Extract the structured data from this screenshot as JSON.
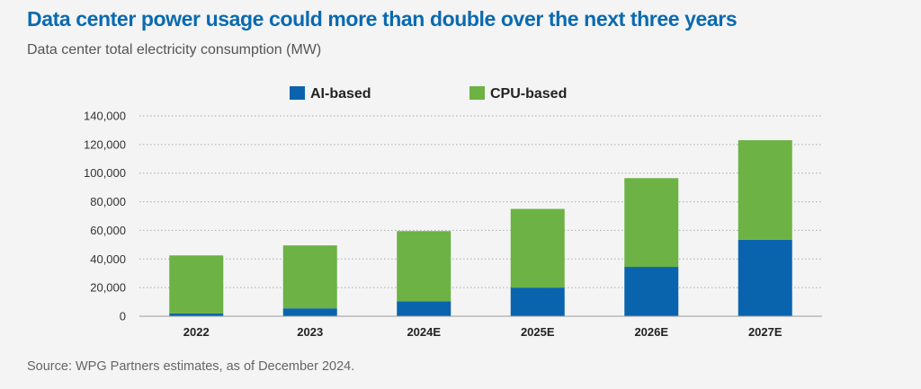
{
  "title": "Data center power usage could more than double over the next three years",
  "subtitle": "Data center total electricity consumption (MW)",
  "source": "Source: WPG Partners estimates, as of December 2024.",
  "colors": {
    "title": "#0a6ab0",
    "ai": "#0a64ad",
    "cpu": "#6cb244",
    "grid": "#aaaaaa",
    "axis": "#9a9a9a"
  },
  "chart_data": {
    "type": "bar",
    "stacked": true,
    "title": "Data center power usage could more than double over the next three years",
    "subtitle": "Data center total electricity consumption (MW)",
    "categories": [
      "2022",
      "2023",
      "2024E",
      "2025E",
      "2026E",
      "2027E"
    ],
    "series": [
      {
        "name": "AI-based",
        "color": "#0a64ad",
        "values": [
          2000,
          5500,
          10500,
          20000,
          34500,
          53500
        ]
      },
      {
        "name": "CPU-based",
        "color": "#6cb244",
        "values": [
          40500,
          44000,
          49000,
          55000,
          62000,
          69500
        ]
      }
    ],
    "y_ticks": [
      "0",
      "20,000",
      "40,000",
      "60,000",
      "80,000",
      "100,000",
      "120,000",
      "140,000"
    ],
    "ylim": [
      0,
      140000
    ],
    "y_tick_step": 20000,
    "grid": "dotted horizontal",
    "legend_position": "top-center",
    "xlabel": "",
    "ylabel": ""
  }
}
